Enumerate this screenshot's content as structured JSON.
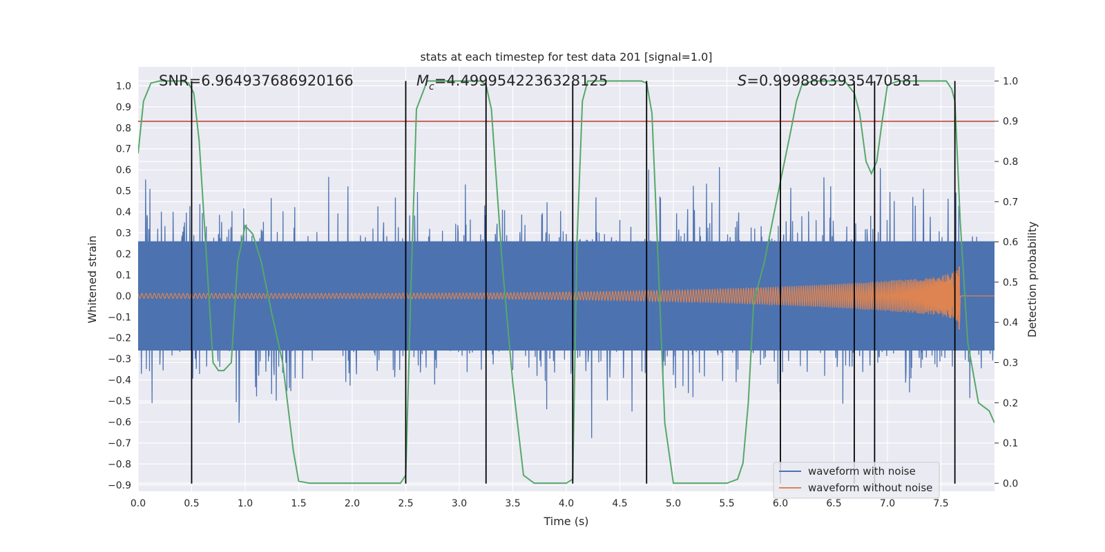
{
  "chart_data": {
    "type": "line",
    "title": "stats at each timestep for test data 201 [signal=1.0]",
    "xlabel": "Time (s)",
    "ylabel": "Whitened strain",
    "y2label": "Detection probability",
    "xlim": [
      0.0,
      8.0
    ],
    "ylim": [
      -0.93,
      1.09
    ],
    "y2lim": [
      -0.02,
      1.035
    ],
    "xticks": [
      "0.0",
      "0.5",
      "1.0",
      "1.5",
      "2.0",
      "2.5",
      "3.0",
      "3.5",
      "4.0",
      "4.5",
      "5.0",
      "5.5",
      "6.0",
      "6.5",
      "7.0",
      "7.5"
    ],
    "yticks": [
      "1.0",
      "0.9",
      "0.8",
      "0.7",
      "0.6",
      "0.5",
      "0.4",
      "0.3",
      "0.2",
      "0.1",
      "0.0",
      "−0.1",
      "−0.2",
      "−0.3",
      "−0.4",
      "−0.5",
      "−0.6",
      "−0.7",
      "−0.8",
      "−0.9"
    ],
    "y2ticks": [
      "1.0",
      "0.9",
      "0.8",
      "0.7",
      "0.6",
      "0.5",
      "0.4",
      "0.3",
      "0.2",
      "0.1",
      "0.0"
    ],
    "annotations": {
      "snr": "SNR=6.964937686920166",
      "mc_symbol": "M",
      "mc_sub": "c",
      "mc_value": "=4.4999542236328125",
      "s_symbol": "S",
      "s_value": "=0.9998863935470581"
    },
    "threshold": {
      "axis": "y2",
      "value": 0.9,
      "color": "#c0392b"
    },
    "vertical_lines": [
      0.5,
      2.5,
      3.25,
      4.06,
      4.75,
      6.0,
      6.69,
      6.88,
      7.63
    ],
    "series": [
      {
        "name": "waveform with noise",
        "color": "#4c72b0",
        "axis": "y",
        "kind": "noise",
        "std": 0.18,
        "band": 0.26,
        "coalescence": 7.68
      },
      {
        "name": "waveform without noise",
        "color": "#dd8452",
        "axis": "y",
        "kind": "chirp",
        "amp_start": 0.012,
        "amp_end": 0.1,
        "coalescence": 7.68,
        "peak": 0.14
      },
      {
        "name": "detection probability",
        "color": "#55a868",
        "axis": "y2",
        "x": [
          0.0,
          0.05,
          0.12,
          0.2,
          0.3,
          0.4,
          0.47,
          0.52,
          0.57,
          0.63,
          0.7,
          0.75,
          0.8,
          0.87,
          0.93,
          1.0,
          1.07,
          1.15,
          1.25,
          1.35,
          1.45,
          1.5,
          1.6,
          2.0,
          2.45,
          2.5,
          2.55,
          2.6,
          2.7,
          3.2,
          3.25,
          3.3,
          3.4,
          3.5,
          3.6,
          3.7,
          4.0,
          4.06,
          4.1,
          4.15,
          4.2,
          4.7,
          4.75,
          4.8,
          4.85,
          4.92,
          5.0,
          5.5,
          5.6,
          5.65,
          5.7,
          5.75,
          5.85,
          6.0,
          6.1,
          6.15,
          6.2,
          6.3,
          6.6,
          6.69,
          6.74,
          6.8,
          6.85,
          6.9,
          6.95,
          7.0,
          7.1,
          7.55,
          7.6,
          7.63,
          7.68,
          7.75,
          7.85,
          7.95,
          8.0
        ],
        "y": [
          0.82,
          0.95,
          0.995,
          1.0,
          1.0,
          1.0,
          0.995,
          0.97,
          0.85,
          0.6,
          0.3,
          0.28,
          0.28,
          0.3,
          0.55,
          0.64,
          0.62,
          0.55,
          0.42,
          0.3,
          0.08,
          0.005,
          0.0,
          0.0,
          0.0,
          0.02,
          0.5,
          0.93,
          1.0,
          1.0,
          0.99,
          0.93,
          0.55,
          0.25,
          0.02,
          0.0,
          0.0,
          0.01,
          0.6,
          0.95,
          1.0,
          1.0,
          0.995,
          0.92,
          0.6,
          0.15,
          0.0,
          0.0,
          0.01,
          0.05,
          0.2,
          0.45,
          0.55,
          0.75,
          0.88,
          0.95,
          0.99,
          1.0,
          1.0,
          0.97,
          0.92,
          0.8,
          0.77,
          0.8,
          0.9,
          0.99,
          1.0,
          1.0,
          0.98,
          0.95,
          0.65,
          0.35,
          0.2,
          0.18,
          0.15
        ]
      }
    ],
    "legend": {
      "position": "lower-right",
      "entries": [
        "waveform with noise",
        "waveform without noise"
      ]
    }
  }
}
